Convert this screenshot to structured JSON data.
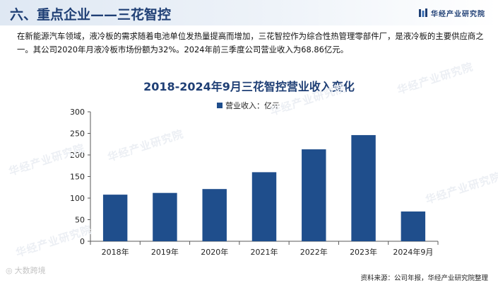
{
  "header": {
    "title": "六、重点企业——三花智控",
    "brand": "华经产业研究院"
  },
  "paragraph": "在新能源汽车领域，液冷板的需求随着电池单位发热量提高而增加，三花智控作为综合性热管理零部件厂，是液冷板的主要供应商之一。其公司2020年月液冷板市场份额为32%。2024年前三季度公司营业收入为68.86亿元。",
  "watermark": "华经产业研究院",
  "footer_mark": "大数跨境",
  "source": "资料来源：公司年报，华经产业研究院整理",
  "colors": {
    "bar": "#1f4e8c",
    "accent": "#1f3f75"
  },
  "chart_data": {
    "type": "bar",
    "title": "2018-2024年9月三花智控营业收入变化",
    "categories": [
      "2018年",
      "2019年",
      "2020年",
      "2021年",
      "2022年",
      "2023年",
      "2024年9月"
    ],
    "series": [
      {
        "name": "营业收入：亿元",
        "values": [
          108,
          112,
          121,
          160,
          213,
          246,
          69
        ]
      }
    ],
    "ylim": [
      0,
      300
    ],
    "yticks": [
      0,
      50,
      100,
      150,
      200,
      250,
      300
    ],
    "grid": false,
    "legend_position": "top-center"
  }
}
